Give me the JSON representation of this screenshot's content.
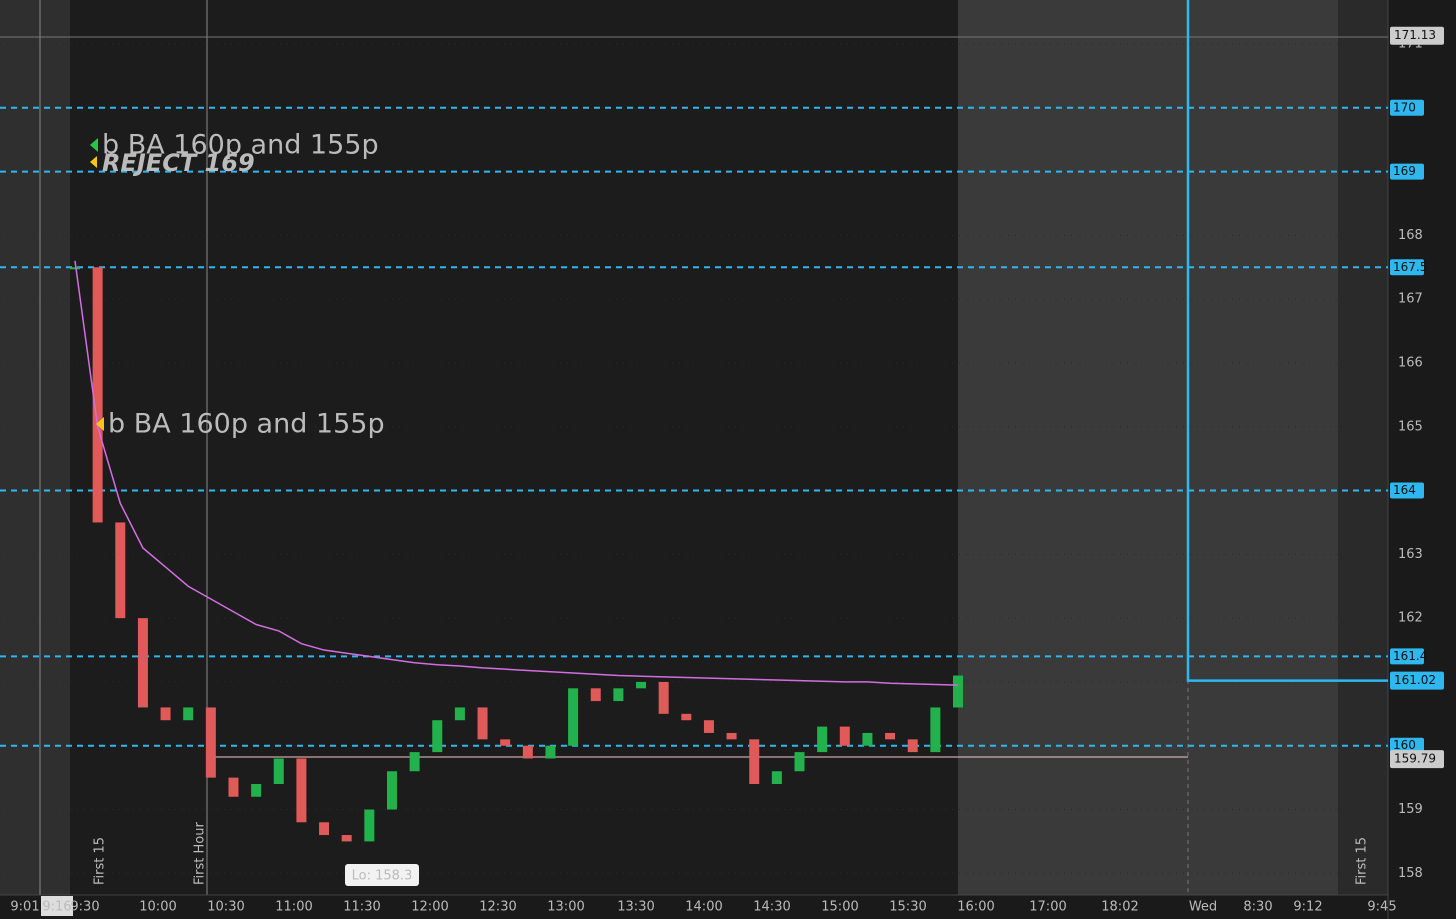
{
  "chart_data": {
    "type": "candle",
    "ylim": [
      157.66,
      171.69
    ],
    "yticks": [
      158,
      159,
      160,
      161,
      162,
      163,
      164,
      165,
      166,
      167,
      168,
      169,
      170,
      171
    ],
    "xticks": [
      "9:01",
      "9:16",
      "9:30",
      "10:00",
      "10:30",
      "11:00",
      "11:30",
      "12:00",
      "12:30",
      "13:00",
      "13:30",
      "14:00",
      "14:30",
      "15:00",
      "15:30",
      "16:00",
      "17:00",
      "18:02",
      "Wed",
      "8:30",
      "9:12",
      "9:45"
    ],
    "series": [
      {
        "color": "#e05a5a",
        "up_color": "#22b14c",
        "values": [
          167.5,
          163.5,
          162,
          160.6,
          160.4,
          160.6,
          159.5,
          159.2,
          159.4,
          159.8,
          158.8,
          158.6,
          158.5,
          159,
          159.6,
          159.9,
          160.4,
          160.6,
          160.1,
          160,
          159.8,
          160,
          160.9,
          160.7,
          160.9,
          161,
          160.5,
          160.4,
          160.2,
          160.1,
          159.4,
          159.6,
          159.9,
          160.3,
          160,
          160.2,
          160.1,
          159.9,
          160.6,
          161.1
        ]
      },
      {
        "color": "#d36ee0",
        "values": [
          167.6,
          165,
          163.8,
          163.1,
          162.8,
          162.5,
          162.3,
          162.1,
          161.9,
          161.8,
          161.6,
          161.5,
          161.45,
          161.4,
          161.35,
          161.3,
          161.27,
          161.25,
          161.22,
          161.2,
          161.18,
          161.16,
          161.14,
          161.12,
          161.1,
          161.09,
          161.08,
          161.07,
          161.06,
          161.05,
          161.04,
          161.03,
          161.02,
          161.01,
          161.0,
          161.0,
          160.98,
          160.97,
          160.96,
          160.95
        ]
      }
    ],
    "levels": [
      170,
      169,
      167.5,
      164,
      161.4,
      160
    ],
    "level_color": "#2fb8f0",
    "price_tags": [
      {
        "value": 171.13,
        "color": "#cccccc"
      },
      {
        "value": 161.02,
        "color": "#2fb8f0"
      },
      {
        "value": 159.79,
        "color": "#cccccc"
      }
    ],
    "annotations": [
      {
        "text": "b BA 160p and 155p",
        "color": "#27c93f"
      },
      {
        "text": "REJECT 169",
        "color": "#f5c518"
      },
      {
        "text": "b BA 160p and 155p",
        "color": "#f5c518"
      },
      {
        "text": "Lo: 158.3"
      },
      {
        "text": "First 15"
      },
      {
        "text": "First Hour"
      },
      {
        "text": "First 15"
      }
    ]
  }
}
